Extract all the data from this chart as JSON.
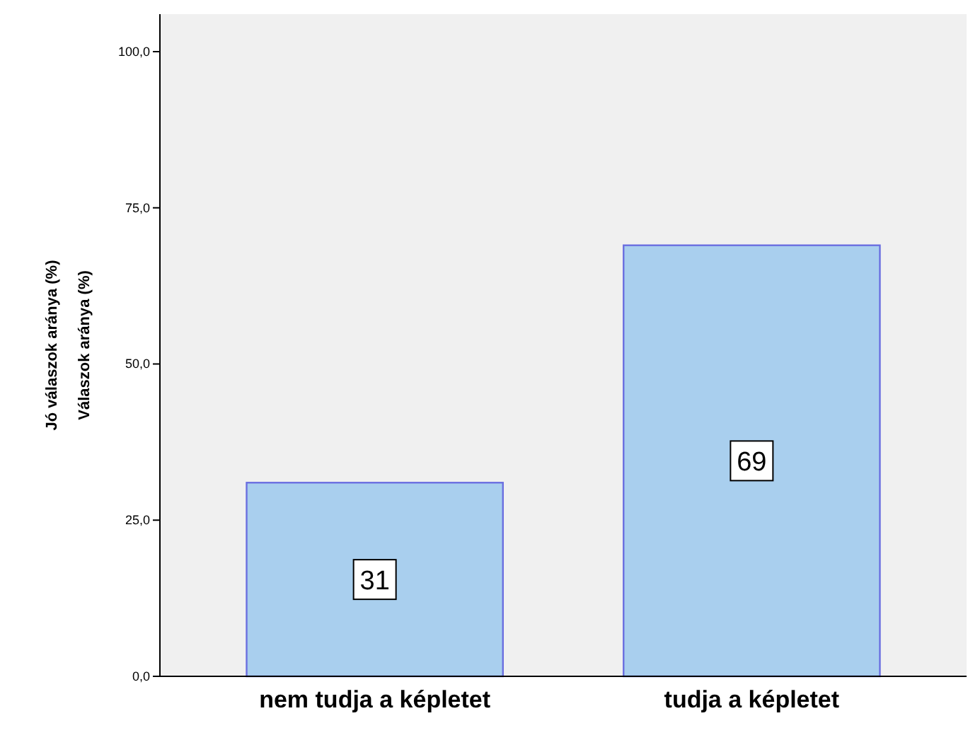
{
  "chart_data": {
    "type": "bar",
    "ylabel": "Válaszok aránya (%)",
    "annotations": [
      "Jó válaszok aránya (%)"
    ],
    "categories": [
      "nem tudja a képletet",
      "tudja a képletet"
    ],
    "values": [
      31,
      69
    ],
    "color": "#a9cfee",
    "data_labels": true,
    "grid": false,
    "ylim": [
      0,
      106
    ],
    "yticks": [
      {
        "value": 0,
        "label": "0,0"
      },
      {
        "value": 25,
        "label": "25,0"
      },
      {
        "value": 50,
        "label": "50,0"
      },
      {
        "value": 75,
        "label": "75,0"
      },
      {
        "value": 100,
        "label": "100,0"
      }
    ]
  }
}
